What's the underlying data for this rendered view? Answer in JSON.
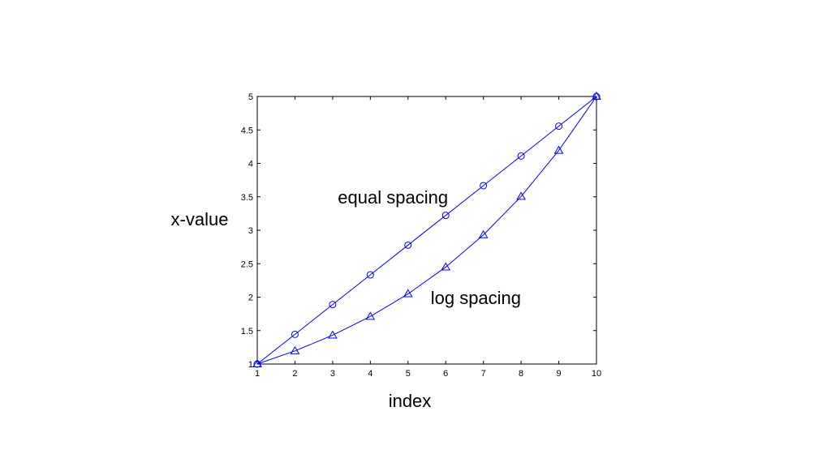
{
  "chart_data": {
    "type": "line",
    "title": "",
    "xlabel": "index",
    "ylabel": "x-value",
    "xlim": [
      1,
      10
    ],
    "ylim": [
      1,
      5
    ],
    "xticks": [
      "1",
      "2",
      "3",
      "4",
      "5",
      "6",
      "7",
      "8",
      "9",
      "10"
    ],
    "yticks": [
      "1",
      "1.5",
      "2",
      "2.5",
      "3",
      "3.5",
      "4",
      "4.5",
      "5"
    ],
    "grid": false,
    "x": [
      1,
      2,
      3,
      4,
      5,
      6,
      7,
      8,
      9,
      10
    ],
    "series": [
      {
        "marker": "circle",
        "color": "#0000ff",
        "values": [
          1.0,
          1.444,
          1.889,
          2.333,
          2.778,
          3.222,
          3.667,
          4.111,
          4.556,
          5.0
        ]
      },
      {
        "marker": "triangle",
        "color": "#0000ff",
        "values": [
          1.0,
          1.196,
          1.431,
          1.711,
          2.048,
          2.449,
          2.93,
          3.505,
          4.193,
          5.0
        ]
      }
    ],
    "annotations": [
      {
        "text": "equal spacing",
        "x": 4.6,
        "y": 3.4
      },
      {
        "text": "log spacing",
        "x": 6.8,
        "y": 1.9
      }
    ]
  }
}
